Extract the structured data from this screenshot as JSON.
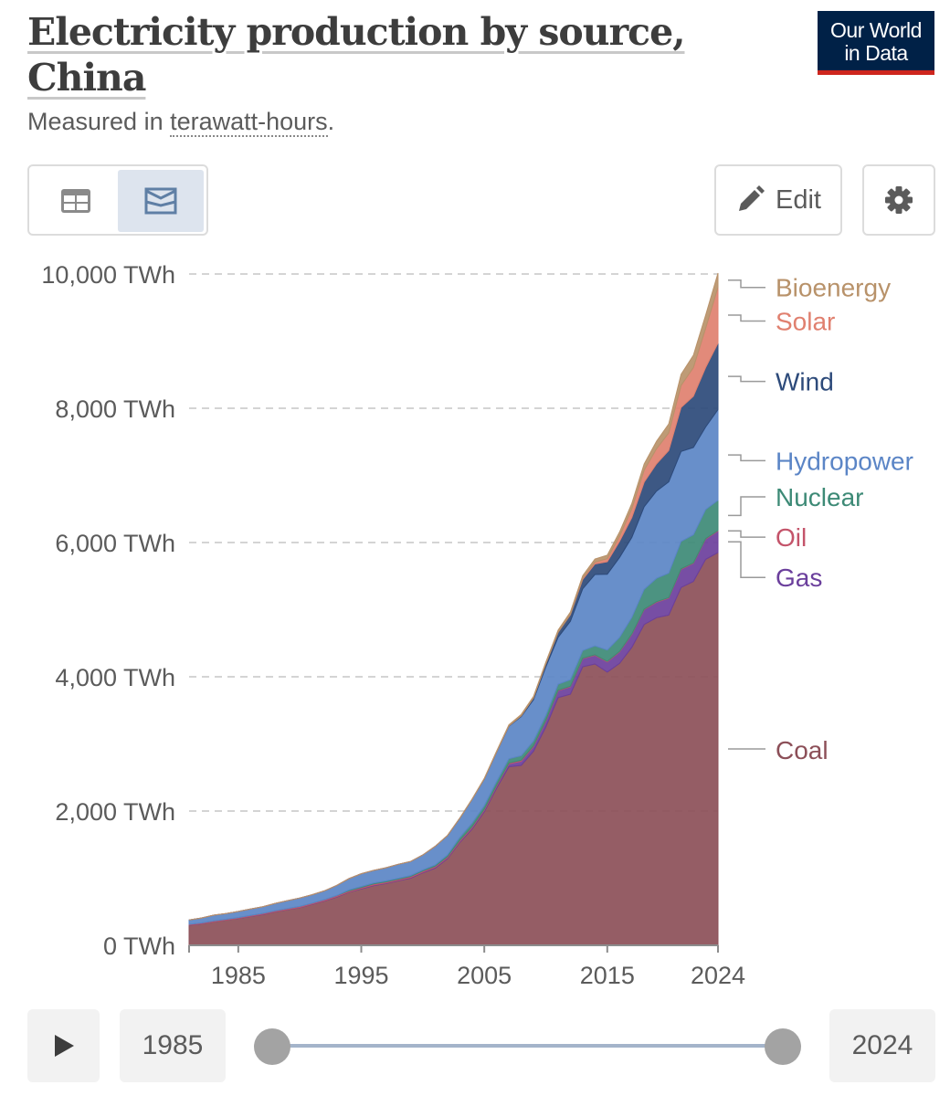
{
  "header": {
    "title_line1": "Electricity production by source,",
    "title_line2": "China",
    "subtitle_prefix": "Measured in ",
    "subtitle_unit": "terawatt-hours",
    "subtitle_suffix": ".",
    "logo_line1": "Our World",
    "logo_line2": "in Data",
    "logo_color": "#002147",
    "logo_accent": "#ce261e"
  },
  "toolbar": {
    "table_icon": "table-icon",
    "chart_icon": "stacked-area-chart-icon",
    "edit_icon": "pencil-icon",
    "edit_label": "Edit",
    "settings_icon": "gear-icon"
  },
  "timeline": {
    "play_icon": "play-icon",
    "start_year": "1985",
    "end_year": "2024"
  },
  "chart_data": {
    "type": "area",
    "stacked": true,
    "x": [
      1981,
      1982,
      1983,
      1984,
      1985,
      1986,
      1987,
      1988,
      1989,
      1990,
      1991,
      1992,
      1993,
      1994,
      1995,
      1996,
      1997,
      1998,
      1999,
      2000,
      2001,
      2002,
      2003,
      2004,
      2005,
      2006,
      2007,
      2008,
      2009,
      2010,
      2011,
      2012,
      2013,
      2014,
      2015,
      2016,
      2017,
      2018,
      2019,
      2020,
      2021,
      2022,
      2023,
      2024
    ],
    "xlim": [
      1981,
      2024
    ],
    "x_ticks": [
      "1985",
      "1995",
      "2005",
      "2015",
      "2024"
    ],
    "y_ticks": [
      "0 TWh",
      "2,000 TWh",
      "4,000 TWh",
      "6,000 TWh",
      "8,000 TWh",
      "10,000 TWh"
    ],
    "ylim": [
      0,
      10000
    ],
    "grid": "horizontal dashed",
    "legend": "right, inline labels",
    "series": [
      {
        "name": "Coal",
        "color": "#8c4f58",
        "values": [
          300,
          320,
          350,
          375,
          400,
          430,
          460,
          500,
          530,
          560,
          610,
          660,
          720,
          790,
          840,
          890,
          920,
          960,
          1000,
          1080,
          1150,
          1290,
          1530,
          1730,
          1990,
          2340,
          2660,
          2680,
          2890,
          3250,
          3690,
          3740,
          4150,
          4190,
          4070,
          4200,
          4440,
          4780,
          4880,
          4920,
          5330,
          5420,
          5750,
          5850
        ]
      },
      {
        "name": "Gas",
        "color": "#6b3f9c",
        "values": [
          3,
          3,
          3,
          3,
          3,
          4,
          4,
          4,
          5,
          5,
          5,
          5,
          6,
          6,
          7,
          8,
          8,
          9,
          9,
          10,
          12,
          14,
          16,
          20,
          22,
          28,
          42,
          62,
          71,
          87,
          102,
          110,
          120,
          130,
          150,
          170,
          190,
          220,
          230,
          250,
          270,
          270,
          300,
          320
        ]
      },
      {
        "name": "Oil",
        "color": "#c4546a",
        "values": [
          10,
          10,
          10,
          10,
          10,
          12,
          12,
          12,
          12,
          14,
          14,
          15,
          15,
          15,
          16,
          16,
          16,
          16,
          16,
          16,
          16,
          16,
          16,
          16,
          16,
          16,
          14,
          14,
          12,
          12,
          10,
          9,
          8,
          8,
          8,
          8,
          8,
          8,
          8,
          8,
          8,
          8,
          8,
          8
        ]
      },
      {
        "name": "Nuclear",
        "color": "#3d8a76",
        "values": [
          0,
          0,
          0,
          0,
          0,
          0,
          0,
          0,
          0,
          0,
          0,
          0,
          2,
          14,
          13,
          14,
          15,
          14,
          15,
          17,
          18,
          25,
          43,
          51,
          53,
          55,
          62,
          68,
          70,
          74,
          87,
          98,
          112,
          132,
          170,
          210,
          248,
          295,
          348,
          366,
          408,
          418,
          433,
          451
        ]
      },
      {
        "name": "Hydropower",
        "color": "#5b85c6",
        "values": [
          65,
          74,
          86,
          86,
          92,
          95,
          100,
          109,
          118,
          126,
          125,
          131,
          150,
          168,
          191,
          187,
          196,
          208,
          208,
          222,
          278,
          288,
          284,
          354,
          397,
          436,
          486,
          584,
          615,
          722,
          699,
          870,
          920,
          1064,
          1130,
          1190,
          1190,
          1230,
          1300,
          1360,
          1340,
          1300,
          1230,
          1350
        ]
      },
      {
        "name": "Wind",
        "color": "#2d4a7a",
        "values": [
          0,
          0,
          0,
          0,
          0,
          0,
          0,
          0,
          0,
          0,
          0,
          0,
          0,
          0,
          0,
          0,
          0,
          0,
          0,
          0,
          0,
          1,
          1,
          1,
          2,
          4,
          6,
          13,
          27,
          45,
          73,
          96,
          141,
          156,
          186,
          241,
          295,
          366,
          406,
          467,
          656,
          763,
          886,
          991
        ]
      },
      {
        "name": "Solar",
        "color": "#e0806f",
        "values": [
          0,
          0,
          0,
          0,
          0,
          0,
          0,
          0,
          0,
          0,
          0,
          0,
          0,
          0,
          0,
          0,
          0,
          0,
          0,
          0,
          0,
          0,
          0,
          0,
          0,
          0,
          0,
          0,
          0,
          1,
          3,
          6,
          15,
          29,
          45,
          75,
          131,
          178,
          224,
          261,
          327,
          428,
          584,
          834
        ]
      },
      {
        "name": "Bioenergy",
        "color": "#b8926a",
        "values": [
          0,
          0,
          0,
          0,
          0,
          0,
          0,
          0,
          0,
          0,
          0,
          0,
          0,
          0,
          0,
          0,
          0,
          0,
          0,
          0,
          0,
          2,
          3,
          5,
          8,
          12,
          15,
          18,
          22,
          25,
          32,
          36,
          40,
          45,
          52,
          64,
          80,
          94,
          112,
          136,
          167,
          183,
          197,
          210
        ]
      }
    ],
    "label_y": {
      "Bioenergy": 9800,
      "Solar": 9300,
      "Wind": 8400,
      "Hydropower": 7220,
      "Nuclear": 6680,
      "Oil": 6080,
      "Gas": 5480,
      "Coal": 2910
    }
  }
}
